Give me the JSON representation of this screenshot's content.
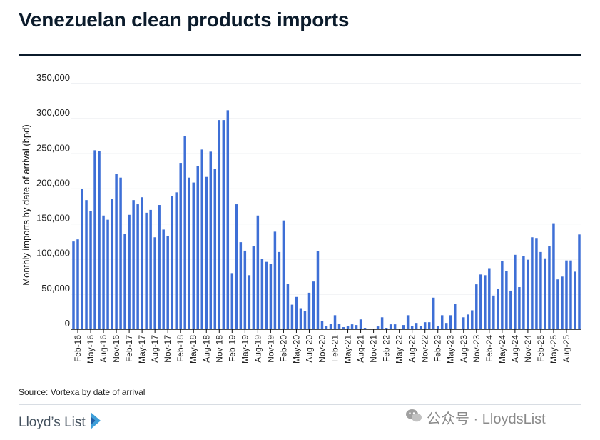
{
  "header": {
    "title": "Venezuelan clean products imports"
  },
  "footer": {
    "source": "Source: Vortexa by date of arrival",
    "brand": "Lloyd’s List",
    "watermark": "公众号 · LloydsList"
  },
  "colors": {
    "bar": "#3e6fd6",
    "title": "#0b1b2b",
    "grid": "#dfe3e8",
    "axis": "#111111"
  },
  "chart_data": {
    "type": "bar",
    "title": "Venezuelan clean products imports",
    "xlabel": "",
    "ylabel": "Monthly imports by date of arrival (bpd)",
    "ylim": [
      0,
      350000
    ],
    "yticks": [
      0,
      50000,
      100000,
      150000,
      200000,
      250000,
      300000,
      350000
    ],
    "ytick_labels": [
      "0",
      "50,000",
      "100,000",
      "150,000",
      "200,000",
      "250,000",
      "300,000",
      "350,000"
    ],
    "grid": true,
    "categories": [
      "Jan-16",
      "Feb-16",
      "Mar-16",
      "Apr-16",
      "May-16",
      "Jun-16",
      "Jul-16",
      "Aug-16",
      "Sep-16",
      "Oct-16",
      "Nov-16",
      "Dec-16",
      "Jan-17",
      "Feb-17",
      "Mar-17",
      "Apr-17",
      "May-17",
      "Jun-17",
      "Jul-17",
      "Aug-17",
      "Sep-17",
      "Oct-17",
      "Nov-17",
      "Dec-17",
      "Jan-18",
      "Feb-18",
      "Mar-18",
      "Apr-18",
      "May-18",
      "Jun-18",
      "Jul-18",
      "Aug-18",
      "Sep-18",
      "Oct-18",
      "Nov-18",
      "Dec-18",
      "Jan-19",
      "Feb-19",
      "Mar-19",
      "Apr-19",
      "May-19",
      "Jun-19",
      "Jul-19",
      "Aug-19",
      "Sep-19",
      "Oct-19",
      "Nov-19",
      "Dec-19",
      "Jan-20",
      "Feb-20",
      "Mar-20",
      "Apr-20",
      "May-20",
      "Jun-20",
      "Jul-20",
      "Aug-20",
      "Sep-20",
      "Oct-20",
      "Nov-20",
      "Dec-20",
      "Jan-21",
      "Feb-21",
      "Mar-21",
      "Apr-21",
      "May-21",
      "Jun-21",
      "Jul-21",
      "Aug-21",
      "Sep-21",
      "Oct-21",
      "Nov-21",
      "Dec-21",
      "Jan-22",
      "Feb-22",
      "Mar-22",
      "Apr-22",
      "May-22",
      "Jun-22",
      "Jul-22",
      "Aug-22",
      "Sep-22",
      "Oct-22",
      "Nov-22",
      "Dec-22",
      "Jan-23",
      "Feb-23",
      "Mar-23",
      "Apr-23",
      "May-23",
      "Jun-23",
      "Jul-23",
      "Aug-23",
      "Sep-23",
      "Oct-23",
      "Nov-23",
      "Dec-23",
      "Jan-24",
      "Feb-24",
      "Mar-24",
      "Apr-24",
      "May-24",
      "Jun-24",
      "Jul-24",
      "Aug-24",
      "Sep-24",
      "Oct-24",
      "Nov-24",
      "Dec-24",
      "Jan-25",
      "Feb-25",
      "Mar-25",
      "Apr-25",
      "May-25",
      "Jun-25",
      "Jul-25",
      "Aug-25",
      "Sep-25",
      "Oct-25",
      "Nov-25"
    ],
    "x_tick_labels": [
      "Feb-16",
      "May-16",
      "Aug-16",
      "Nov-16",
      "Feb-17",
      "May-17",
      "Aug-17",
      "Nov-17",
      "Feb-18",
      "May-18",
      "Aug-18",
      "Nov-18",
      "Feb-19",
      "May-19",
      "Aug-19",
      "Nov-19",
      "Feb-20",
      "May-20",
      "Aug-20",
      "Nov-20",
      "Feb-21",
      "May-21",
      "Aug-21",
      "Nov-21",
      "Feb-22",
      "May-22",
      "Aug-22",
      "Nov-22",
      "Feb-23",
      "May-23",
      "Aug-23",
      "Nov-23",
      "Feb-24",
      "May-24",
      "Aug-24",
      "Nov-24",
      "Feb-25",
      "May-25",
      "Aug-25"
    ],
    "series": [
      {
        "name": "Monthly imports (bpd)",
        "values": [
          125000,
          128000,
          200000,
          184000,
          168000,
          255000,
          254000,
          162000,
          156000,
          186000,
          221000,
          216000,
          136000,
          163000,
          184000,
          178000,
          188000,
          166000,
          170000,
          131000,
          177000,
          142000,
          133000,
          190000,
          195000,
          237000,
          275000,
          216000,
          209000,
          232000,
          256000,
          217000,
          253000,
          228000,
          298000,
          298000,
          312000,
          80000,
          178000,
          124000,
          112000,
          77000,
          118000,
          162000,
          100000,
          96000,
          93000,
          139000,
          110000,
          155000,
          65000,
          35000,
          46000,
          30000,
          26000,
          52000,
          68000,
          111000,
          12000,
          5000,
          8000,
          20000,
          8000,
          3000,
          5000,
          7000,
          6000,
          14000,
          2000,
          0,
          0,
          4000,
          17000,
          2000,
          7000,
          7000,
          0,
          6000,
          20000,
          5000,
          9000,
          5000,
          10000,
          10000,
          45000,
          5000,
          20000,
          9000,
          20000,
          36000,
          0,
          17000,
          21000,
          27000,
          64000,
          78000,
          77000,
          87000,
          48000,
          58000,
          97000,
          83000,
          55000,
          106000,
          60000,
          104000,
          99000,
          131000,
          130000,
          110000,
          101000,
          118000,
          151000,
          71000,
          75000,
          98000,
          98000,
          82000,
          135000
        ]
      }
    ]
  }
}
